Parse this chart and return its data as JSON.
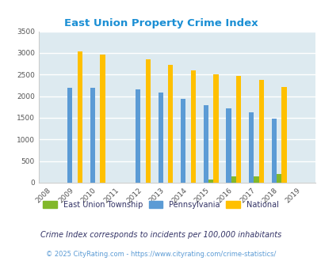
{
  "title": "East Union Property Crime Index",
  "years": [
    2008,
    2009,
    2010,
    2011,
    2012,
    2013,
    2014,
    2015,
    2016,
    2017,
    2018,
    2019
  ],
  "east_union": [
    0,
    0,
    0,
    0,
    0,
    0,
    0,
    80,
    145,
    145,
    200,
    0
  ],
  "pennsylvania": [
    0,
    2200,
    2190,
    0,
    2160,
    2080,
    1940,
    1800,
    1720,
    1630,
    1490,
    0
  ],
  "national": [
    0,
    3040,
    2960,
    0,
    2860,
    2730,
    2600,
    2500,
    2470,
    2380,
    2210,
    0
  ],
  "bar_color_east": "#82b829",
  "bar_color_pa": "#5b9bd5",
  "bar_color_national": "#ffc000",
  "bg_color": "#ddeaf0",
  "grid_color": "#ffffff",
  "title_color": "#1b8fd4",
  "ylabel_max": 3500,
  "yticks": [
    0,
    500,
    1000,
    1500,
    2000,
    2500,
    3000,
    3500
  ],
  "legend_labels": [
    "East Union Township",
    "Pennsylvania",
    "National"
  ],
  "footnote1": "Crime Index corresponds to incidents per 100,000 inhabitants",
  "footnote2": "© 2025 CityRating.com - https://www.cityrating.com/crime-statistics/",
  "bar_width": 0.22,
  "legend_text_color": "#333366",
  "footnote1_color": "#333366",
  "footnote2_color": "#5b9bd5"
}
